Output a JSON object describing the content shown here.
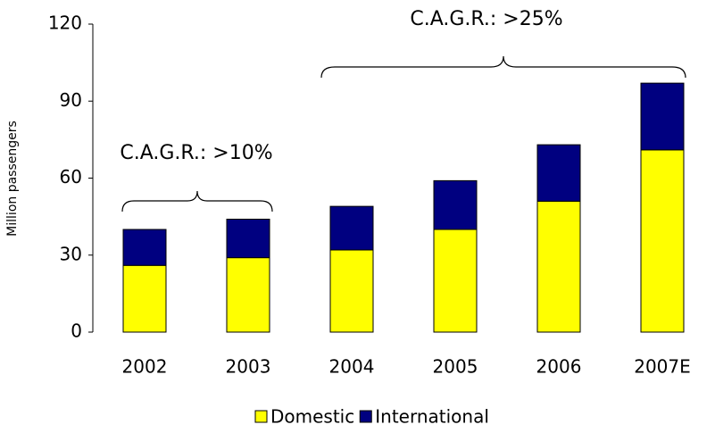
{
  "chart_data": {
    "type": "bar",
    "stacked": true,
    "y_label": "Million passengers",
    "categories": [
      "2002",
      "2003",
      "2004",
      "2005",
      "2006",
      "2007E"
    ],
    "series": [
      {
        "name": "Domestic",
        "color": "#ffff00",
        "values": [
          26,
          29,
          32,
          40,
          51,
          71
        ]
      },
      {
        "name": "International",
        "color": "#000080",
        "values": [
          14,
          15,
          17,
          19,
          22,
          26
        ]
      }
    ],
    "ylim": [
      0,
      120
    ],
    "yticks": [
      0,
      30,
      60,
      90,
      120
    ],
    "annotations": [
      {
        "text": "C.A.G.R.: >10%",
        "color": "#000000"
      },
      {
        "text": "C.A.G.R.: >25%",
        "color": "#ff0000"
      }
    ],
    "legend": "bottom"
  }
}
